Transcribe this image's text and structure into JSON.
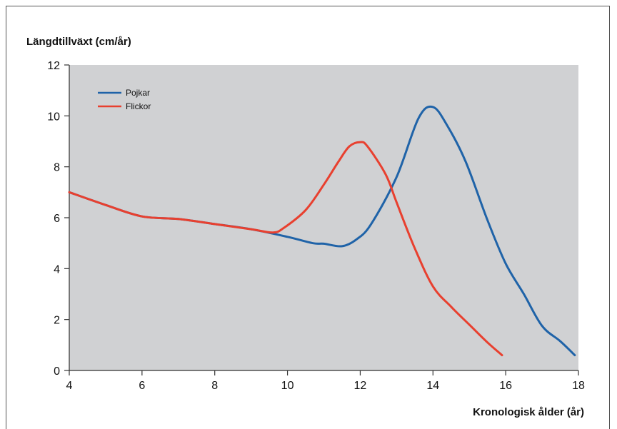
{
  "chart_data": {
    "type": "line",
    "title": "",
    "ylabel": "Längdtillväxt (cm/år)",
    "xlabel": "Kronologisk ålder (år)",
    "xlim": [
      4,
      18
    ],
    "ylim": [
      0,
      12
    ],
    "x_ticks": [
      "4",
      "6",
      "8",
      "10",
      "12",
      "14",
      "16",
      "18"
    ],
    "y_ticks": [
      "0",
      "2",
      "4",
      "6",
      "8",
      "10",
      "12"
    ],
    "grid": false,
    "legend_position": "top-left",
    "plot_background": "#d0d1d3",
    "series": [
      {
        "name": "Pojkar",
        "color": "#1f63a8",
        "x": [
          4,
          5,
          6,
          7,
          8,
          9,
          10,
          10.7,
          11,
          11.5,
          11.9,
          12.3,
          13,
          13.6,
          14,
          14.4,
          14.9,
          15.5,
          16,
          16.5,
          17,
          17.5,
          17.9
        ],
        "y": [
          7.0,
          6.5,
          6.05,
          5.95,
          5.75,
          5.55,
          5.25,
          5.0,
          4.98,
          4.88,
          5.15,
          5.75,
          7.6,
          9.9,
          10.35,
          9.6,
          8.2,
          5.9,
          4.2,
          3.0,
          1.75,
          1.15,
          0.6
        ]
      },
      {
        "name": "Flickor",
        "color": "#e8402f",
        "x": [
          4,
          5,
          6,
          7,
          8,
          9,
          9.6,
          9.9,
          10.5,
          11,
          11.4,
          11.7,
          12,
          12.2,
          12.7,
          13,
          13.5,
          14,
          14.5,
          15,
          15.5,
          15.9
        ],
        "y": [
          7.0,
          6.5,
          6.05,
          5.95,
          5.75,
          5.55,
          5.42,
          5.6,
          6.3,
          7.3,
          8.2,
          8.8,
          8.97,
          8.8,
          7.7,
          6.6,
          4.8,
          3.3,
          2.5,
          1.8,
          1.1,
          0.6
        ]
      }
    ]
  }
}
